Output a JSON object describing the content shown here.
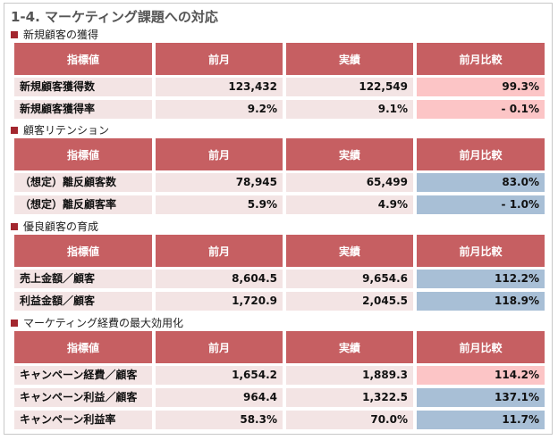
{
  "page_title": "1-4. マーケティング課題への対応",
  "colors": {
    "header_bg": "#c65f62",
    "row_bg": "#f3e4e4",
    "highlight_pink": "#fcc5c6",
    "highlight_blue": "#a8bfd6",
    "bullet": "#a3272f"
  },
  "columns": [
    "指標値",
    "前月",
    "実績",
    "前月比較"
  ],
  "sections": [
    {
      "title": "新規顧客の獲得",
      "rows": [
        {
          "label": "新規顧客獲得数",
          "prev": "123,432",
          "actual": "122,549",
          "compare": "99.3%",
          "highlight": "pink"
        },
        {
          "label": "新規顧客獲得率",
          "prev": "9.2%",
          "actual": "9.1%",
          "compare": "- 0.1%",
          "highlight": "pink"
        }
      ]
    },
    {
      "title": "顧客リテンション",
      "rows": [
        {
          "label": "（想定）離反顧客数",
          "prev": "78,945",
          "actual": "65,499",
          "compare": "83.0%",
          "highlight": "blue"
        },
        {
          "label": "（想定）離反顧客率",
          "prev": "5.9%",
          "actual": "4.9%",
          "compare": "- 1.0%",
          "highlight": "blue"
        }
      ]
    },
    {
      "title": "優良顧客の育成",
      "rows": [
        {
          "label": "売上金額／顧客",
          "prev": "8,604.5",
          "actual": "9,654.6",
          "compare": "112.2%",
          "highlight": "blue"
        },
        {
          "label": "利益金額／顧客",
          "prev": "1,720.9",
          "actual": "2,045.5",
          "compare": "118.9%",
          "highlight": "blue"
        }
      ]
    },
    {
      "title": "マーケティング経費の最大効用化",
      "rows": [
        {
          "label": "キャンペーン経費／顧客",
          "prev": "1,654.2",
          "actual": "1,889.3",
          "compare": "114.2%",
          "highlight": "pink"
        },
        {
          "label": "キャンペーン利益／顧客",
          "prev": "964.4",
          "actual": "1,322.5",
          "compare": "137.1%",
          "highlight": "blue"
        },
        {
          "label": "キャンペーン利益率",
          "prev": "58.3%",
          "actual": "70.0%",
          "compare": "11.7%",
          "highlight": "blue"
        }
      ]
    }
  ]
}
